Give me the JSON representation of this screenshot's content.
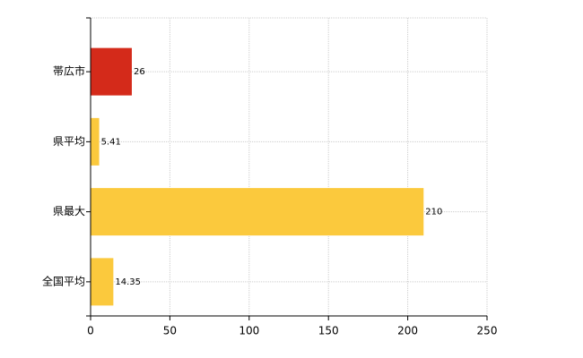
{
  "chart_data": {
    "type": "hbar",
    "categories": [
      "帯広市",
      "県平均",
      "県最大",
      "全国平均"
    ],
    "values": [
      26,
      5.41,
      210,
      14.35
    ],
    "colors": [
      "#d42a1a",
      "#fbc93d",
      "#fbc93d",
      "#fbc93d"
    ],
    "xlim": [
      0,
      250
    ],
    "xticks": [
      0,
      50,
      100,
      150,
      200,
      250
    ],
    "grid": true
  }
}
